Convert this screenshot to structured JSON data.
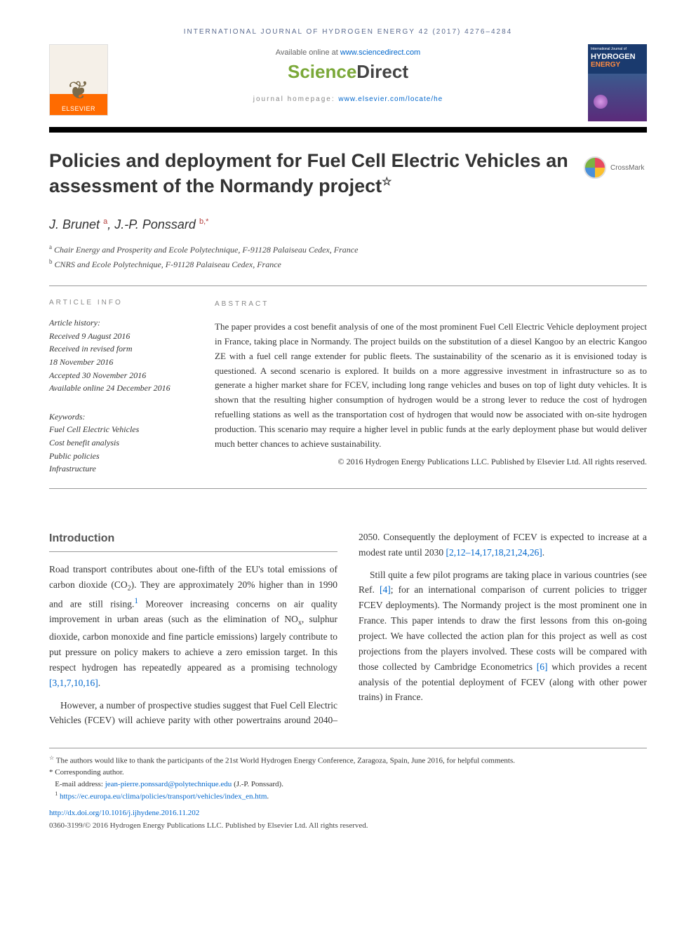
{
  "journal_header": "INTERNATIONAL JOURNAL OF HYDROGEN ENERGY 42 (2017) 4276–4284",
  "header": {
    "available_text": "Available online at ",
    "available_link": "www.sciencedirect.com",
    "sd_sci": "Science",
    "sd_dir": "Direct",
    "homepage_label": "journal homepage: ",
    "homepage_link": "www.elsevier.com/locate/he",
    "elsevier_name": "ELSEVIER",
    "cover_top": "International Journal of",
    "cover_main": "HYDROGEN",
    "cover_sub": "ENERGY"
  },
  "title": "Policies and deployment for Fuel Cell Electric Vehicles an assessment of the Normandy project",
  "title_star": "☆",
  "crossmark_label": "CrossMark",
  "authors": {
    "a1_name": "J. Brunet",
    "a1_aff": "a",
    "a2_name": "J.-P. Ponssard",
    "a2_aff": "b,",
    "a2_corr": "*"
  },
  "affiliations": {
    "a": "Chair Energy and Prosperity and Ecole Polytechnique, F-91128 Palaiseau Cedex, France",
    "b": "CNRS and Ecole Polytechnique, F-91128 Palaiseau Cedex, France"
  },
  "info": {
    "label": "ARTICLE INFO",
    "history_title": "Article history:",
    "h1": "Received 9 August 2016",
    "h2": "Received in revised form",
    "h3": "18 November 2016",
    "h4": "Accepted 30 November 2016",
    "h5": "Available online 24 December 2016",
    "keywords_title": "Keywords:",
    "k1": "Fuel Cell Electric Vehicles",
    "k2": "Cost benefit analysis",
    "k3": "Public policies",
    "k4": "Infrastructure"
  },
  "abstract": {
    "label": "ABSTRACT",
    "text": "The paper provides a cost benefit analysis of one of the most prominent Fuel Cell Electric Vehicle deployment project in France, taking place in Normandy. The project builds on the substitution of a diesel Kangoo by an electric Kangoo ZE with a fuel cell range extender for public fleets. The sustainability of the scenario as it is envisioned today is questioned. A second scenario is explored. It builds on a more aggressive investment in infrastructure so as to generate a higher market share for FCEV, including long range vehicles and buses on top of light duty vehicles. It is shown that the resulting higher consumption of hydrogen would be a strong lever to reduce the cost of hydrogen refuelling stations as well as the transportation cost of hydrogen that would now be associated with on-site hydrogen production. This scenario may require a higher level in public funds at the early deployment phase but would deliver much better chances to achieve sustainability.",
    "copyright": "© 2016 Hydrogen Energy Publications LLC. Published by Elsevier Ltd. All rights reserved."
  },
  "body": {
    "intro_heading": "Introduction",
    "p1a": "Road transport contributes about one-fifth of the EU's total emissions of carbon dioxide (CO",
    "p1b": "). They are approximately 20% higher than in 1990 and are still rising.",
    "p1c": " Moreover increasing concerns on air quality improvement in urban areas (such as the elimination of NO",
    "p1d": ", sulphur dioxide, carbon monoxide and fine particle emissions) largely contribute to put pressure on policy makers to achieve a zero emission target. In this respect hydrogen has repeatedly appeared as a promising technology ",
    "p1_refs": "[3,1,7,10,16]",
    "p2a": "However, a number of prospective studies suggest that Fuel Cell Electric Vehicles (FCEV) will achieve parity with other",
    "p2b": "powertrains around 2040–2050. Consequently the deployment of FCEV is expected to increase at a modest rate until 2030 ",
    "p2_refs": "[2,12–14,17,18,21,24,26]",
    "p3a": "Still quite a few pilot programs are taking place in various countries (see Ref. ",
    "p3_ref1": "[4]",
    "p3b": "; for an international comparison of current policies to trigger FCEV deployments). The Normandy project is the most prominent one in France. This paper intends to draw the first lessons from this on-going project. We have collected the action plan for this project as well as cost projections from the players involved. These costs will be compared with those collected by Cambridge Econometrics ",
    "p3_ref2": "[6]",
    "p3c": " which provides a recent analysis of the potential deployment of FCEV (along with other power trains) in France."
  },
  "footnotes": {
    "star": "☆",
    "star_text": " The authors would like to thank the participants of the 21st World Hydrogen Energy Conference, Zaragoza, Spain, June 2016, for helpful comments.",
    "corr": "* Corresponding author.",
    "email_label": "E-mail address: ",
    "email": "jean-pierre.ponssard@polytechnique.edu",
    "email_name": " (J.-P. Ponssard).",
    "fn1": "1",
    "fn1_link": "https://ec.europa.eu/clima/policies/transport/vehicles/index_en.htm",
    "doi": "http://dx.doi.org/10.1016/j.ijhydene.2016.11.202",
    "issn_copyright": "0360-3199/© 2016 Hydrogen Energy Publications LLC. Published by Elsevier Ltd. All rights reserved."
  },
  "colors": {
    "link": "#0066cc",
    "accent_orange": "#ff6b00",
    "sd_green": "#7aa838",
    "header_blue": "#5b6b8f"
  }
}
